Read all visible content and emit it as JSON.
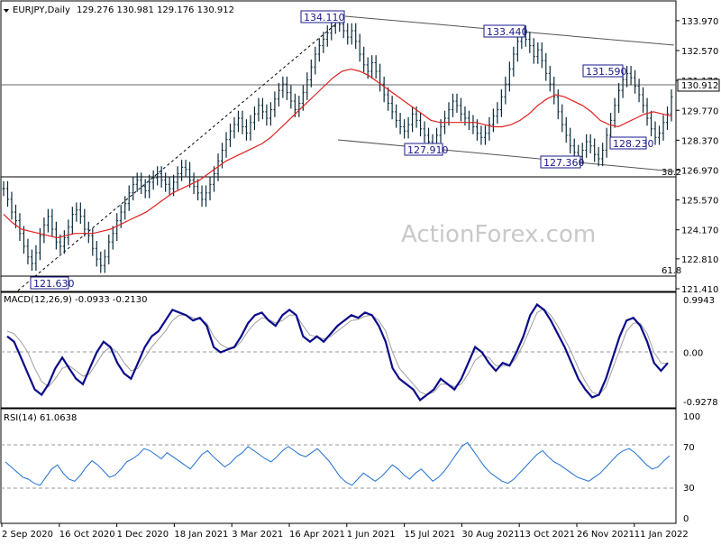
{
  "header": {
    "symbol": "EURJPY,Daily",
    "ohlc": "129.276 130.981 129.176 130.912",
    "macd_title": "MACD(12,26,9) -0.0933 -0.2130",
    "rsi_title": "RSI(14) 61.0638"
  },
  "watermark": "ActionForex.com",
  "colors": {
    "bars": "#0a2a3a",
    "ma": "#e02020",
    "macd_line": "#0a0a8a",
    "macd_signal": "#a0a0a0",
    "rsi_line": "#1f6fd0",
    "label_text": "#1a1a8c",
    "grid_line": "#000000"
  },
  "chart_data": [
    {
      "type": "bar",
      "panel": "price",
      "ohlc_last": {
        "open": 129.276,
        "high": 130.981,
        "low": 129.176,
        "close": 130.912
      },
      "x_tick_labels": [
        "2 Sep 2020",
        "16 Oct 2020",
        "1 Dec 2020",
        "18 Jan 2021",
        "3 Mar 2021",
        "16 Apr 2021",
        "1 Jun 2021",
        "15 Jul 2021",
        "30 Aug 2021",
        "13 Oct 2021",
        "26 Nov 2021",
        "11 Jan 2022"
      ],
      "y_ticks": [
        133.97,
        132.57,
        131.17,
        129.77,
        128.37,
        126.97,
        125.57,
        124.17,
        122.81,
        121.41
      ],
      "ylim": [
        121.41,
        134.6
      ],
      "current_price_label": "130.912",
      "annotations": [
        {
          "label": "134.110",
          "value": 134.11
        },
        {
          "label": "133.440",
          "value": 133.44
        },
        {
          "label": "131.590",
          "value": 131.59
        },
        {
          "label": "127.910",
          "value": 127.91
        },
        {
          "label": "127.360",
          "value": 127.36
        },
        {
          "label": "128.230",
          "value": 128.23
        },
        {
          "label": "121.630",
          "value": 121.63
        }
      ],
      "level_labels": [
        {
          "label": "38.2",
          "value": 126.6
        },
        {
          "label": "61.8",
          "value": 121.9
        }
      ],
      "series": [
        {
          "name": "price",
          "values": [
            126.1,
            125.6,
            125.0,
            124.6,
            124.0,
            123.4,
            122.9,
            122.6,
            123.1,
            123.9,
            124.4,
            124.8,
            124.2,
            123.6,
            123.4,
            123.8,
            124.3,
            124.9,
            125.1,
            124.8,
            124.2,
            123.9,
            123.3,
            122.8,
            122.5,
            122.9,
            123.6,
            124.0,
            124.6,
            125.0,
            125.4,
            125.9,
            126.3,
            126.5,
            126.2,
            126.0,
            126.4,
            126.6,
            126.8,
            126.5,
            126.3,
            126.1,
            126.4,
            126.8,
            127.1,
            127.0,
            126.5,
            126.2,
            125.9,
            125.6,
            125.9,
            126.3,
            126.8,
            127.4,
            127.9,
            128.4,
            128.8,
            129.1,
            129.4,
            129.0,
            128.7,
            129.2,
            129.6,
            130.0,
            129.7,
            129.4,
            129.8,
            130.3,
            130.7,
            131.0,
            130.6,
            130.2,
            129.8,
            130.1,
            130.6,
            131.2,
            131.8,
            132.4,
            132.8,
            133.1,
            133.4,
            133.7,
            134.0,
            133.8,
            133.5,
            133.2,
            133.5,
            133.0,
            132.4,
            131.9,
            131.6,
            132.0,
            131.6,
            131.0,
            130.5,
            130.1,
            129.7,
            129.3,
            129.0,
            128.8,
            129.1,
            129.6,
            129.3,
            128.9,
            128.6,
            128.3,
            128.1,
            128.6,
            129.0,
            129.4,
            129.8,
            130.2,
            130.0,
            129.6,
            129.4,
            129.2,
            129.0,
            128.7,
            128.5,
            128.7,
            129.1,
            129.5,
            129.8,
            130.4,
            131.0,
            131.7,
            132.4,
            133.0,
            133.4,
            133.1,
            132.8,
            132.3,
            132.6,
            132.1,
            131.5,
            131.0,
            130.4,
            129.7,
            129.1,
            128.6,
            128.1,
            127.8,
            127.6,
            127.9,
            128.3,
            128.1,
            127.7,
            127.5,
            127.9,
            128.6,
            129.3,
            130.0,
            130.7,
            131.2,
            131.5,
            131.3,
            130.9,
            130.5,
            130.0,
            129.4,
            128.9,
            128.5,
            128.7,
            129.2,
            129.6,
            130.4
          ]
        },
        {
          "name": "ma",
          "values": [
            124.9,
            124.5,
            124.2,
            124.1,
            124.0,
            123.9,
            123.8,
            123.9,
            124.0,
            124.0,
            124.0,
            124.1,
            124.2,
            124.4,
            124.6,
            124.8,
            125.0,
            125.3,
            125.6,
            125.9,
            126.1,
            126.3,
            126.5,
            126.8,
            127.1,
            127.4,
            127.6,
            127.8,
            128.0,
            128.2,
            128.5,
            128.9,
            129.3,
            129.7,
            130.1,
            130.5,
            130.9,
            131.3,
            131.6,
            131.7,
            131.6,
            131.4,
            131.1,
            130.8,
            130.5,
            130.2,
            129.9,
            129.6,
            129.3,
            129.2,
            129.2,
            129.2,
            129.2,
            129.2,
            129.1,
            129.0,
            129.0,
            129.1,
            129.3,
            129.6,
            130.0,
            130.3,
            130.5,
            130.4,
            130.2,
            130.0,
            129.7,
            129.3,
            129.1,
            129.0,
            129.2,
            129.4,
            129.6,
            129.7,
            129.6,
            129.5
          ]
        }
      ]
    },
    {
      "type": "line",
      "panel": "macd",
      "title": "MACD(12,26,9) -0.0933 -0.2130",
      "y_tick_labels": [
        "0.9943",
        "0.00",
        "-0.9278"
      ],
      "ylim": [
        -0.9278,
        0.9943
      ],
      "series": [
        {
          "name": "MACD",
          "values": [
            0.3,
            0.2,
            -0.1,
            -0.4,
            -0.7,
            -0.8,
            -0.6,
            -0.3,
            -0.1,
            -0.3,
            -0.5,
            -0.6,
            -0.3,
            0.0,
            0.2,
            0.1,
            -0.2,
            -0.4,
            -0.5,
            -0.2,
            0.1,
            0.3,
            0.4,
            0.6,
            0.8,
            0.75,
            0.7,
            0.6,
            0.65,
            0.5,
            0.1,
            0.0,
            0.05,
            0.1,
            0.3,
            0.55,
            0.7,
            0.75,
            0.6,
            0.5,
            0.7,
            0.8,
            0.7,
            0.3,
            0.2,
            0.3,
            0.2,
            0.35,
            0.5,
            0.6,
            0.7,
            0.65,
            0.75,
            0.7,
            0.5,
            0.2,
            -0.3,
            -0.5,
            -0.6,
            -0.7,
            -0.9,
            -0.8,
            -0.7,
            -0.5,
            -0.6,
            -0.7,
            -0.5,
            -0.2,
            0.1,
            0.0,
            -0.2,
            -0.35,
            -0.2,
            -0.25,
            0.0,
            0.3,
            0.7,
            0.9,
            0.8,
            0.6,
            0.35,
            0.1,
            -0.2,
            -0.5,
            -0.7,
            -0.85,
            -0.8,
            -0.5,
            -0.1,
            0.3,
            0.6,
            0.65,
            0.5,
            0.2,
            -0.2,
            -0.35,
            -0.2
          ]
        },
        {
          "name": "Signal",
          "values": [
            0.4,
            0.35,
            0.2,
            0.0,
            -0.3,
            -0.55,
            -0.65,
            -0.5,
            -0.3,
            -0.25,
            -0.35,
            -0.45,
            -0.4,
            -0.2,
            0.0,
            0.1,
            0.0,
            -0.2,
            -0.35,
            -0.3,
            -0.1,
            0.1,
            0.25,
            0.4,
            0.6,
            0.7,
            0.7,
            0.65,
            0.62,
            0.55,
            0.3,
            0.15,
            0.08,
            0.08,
            0.2,
            0.4,
            0.55,
            0.65,
            0.62,
            0.55,
            0.6,
            0.7,
            0.7,
            0.5,
            0.32,
            0.3,
            0.25,
            0.3,
            0.4,
            0.5,
            0.6,
            0.62,
            0.68,
            0.7,
            0.6,
            0.4,
            0.0,
            -0.3,
            -0.45,
            -0.6,
            -0.75,
            -0.8,
            -0.75,
            -0.6,
            -0.6,
            -0.65,
            -0.6,
            -0.4,
            -0.15,
            -0.05,
            -0.1,
            -0.25,
            -0.25,
            -0.25,
            -0.1,
            0.15,
            0.45,
            0.75,
            0.82,
            0.7,
            0.5,
            0.25,
            0.0,
            -0.3,
            -0.55,
            -0.75,
            -0.8,
            -0.65,
            -0.3,
            0.05,
            0.4,
            0.55,
            0.55,
            0.35,
            0.0,
            -0.2,
            -0.21
          ]
        }
      ]
    },
    {
      "type": "line",
      "panel": "rsi",
      "title": "RSI(14) 61.0638",
      "y_tick_labels": [
        "100",
        "70",
        "30",
        "0"
      ],
      "ylim": [
        0,
        100
      ],
      "series": [
        {
          "name": "RSI",
          "values": [
            55,
            50,
            45,
            40,
            38,
            34,
            32,
            40,
            48,
            52,
            44,
            38,
            36,
            42,
            50,
            56,
            52,
            46,
            40,
            42,
            48,
            55,
            58,
            62,
            68,
            66,
            62,
            58,
            64,
            60,
            56,
            52,
            48,
            55,
            62,
            66,
            60,
            55,
            50,
            54,
            60,
            64,
            70,
            66,
            62,
            58,
            55,
            60,
            66,
            70,
            66,
            62,
            60,
            64,
            68,
            62,
            56,
            48,
            40,
            35,
            32,
            38,
            44,
            40,
            36,
            40,
            46,
            52,
            48,
            42,
            38,
            44,
            48,
            42,
            36,
            40,
            46,
            54,
            62,
            70,
            74,
            66,
            58,
            50,
            44,
            40,
            36,
            34,
            38,
            44,
            50,
            56,
            62,
            66,
            60,
            55,
            52,
            48,
            44,
            40,
            38,
            36,
            40,
            44,
            50,
            56,
            62,
            66,
            68,
            64,
            58,
            52,
            48,
            50,
            56,
            61
          ]
        }
      ]
    }
  ]
}
